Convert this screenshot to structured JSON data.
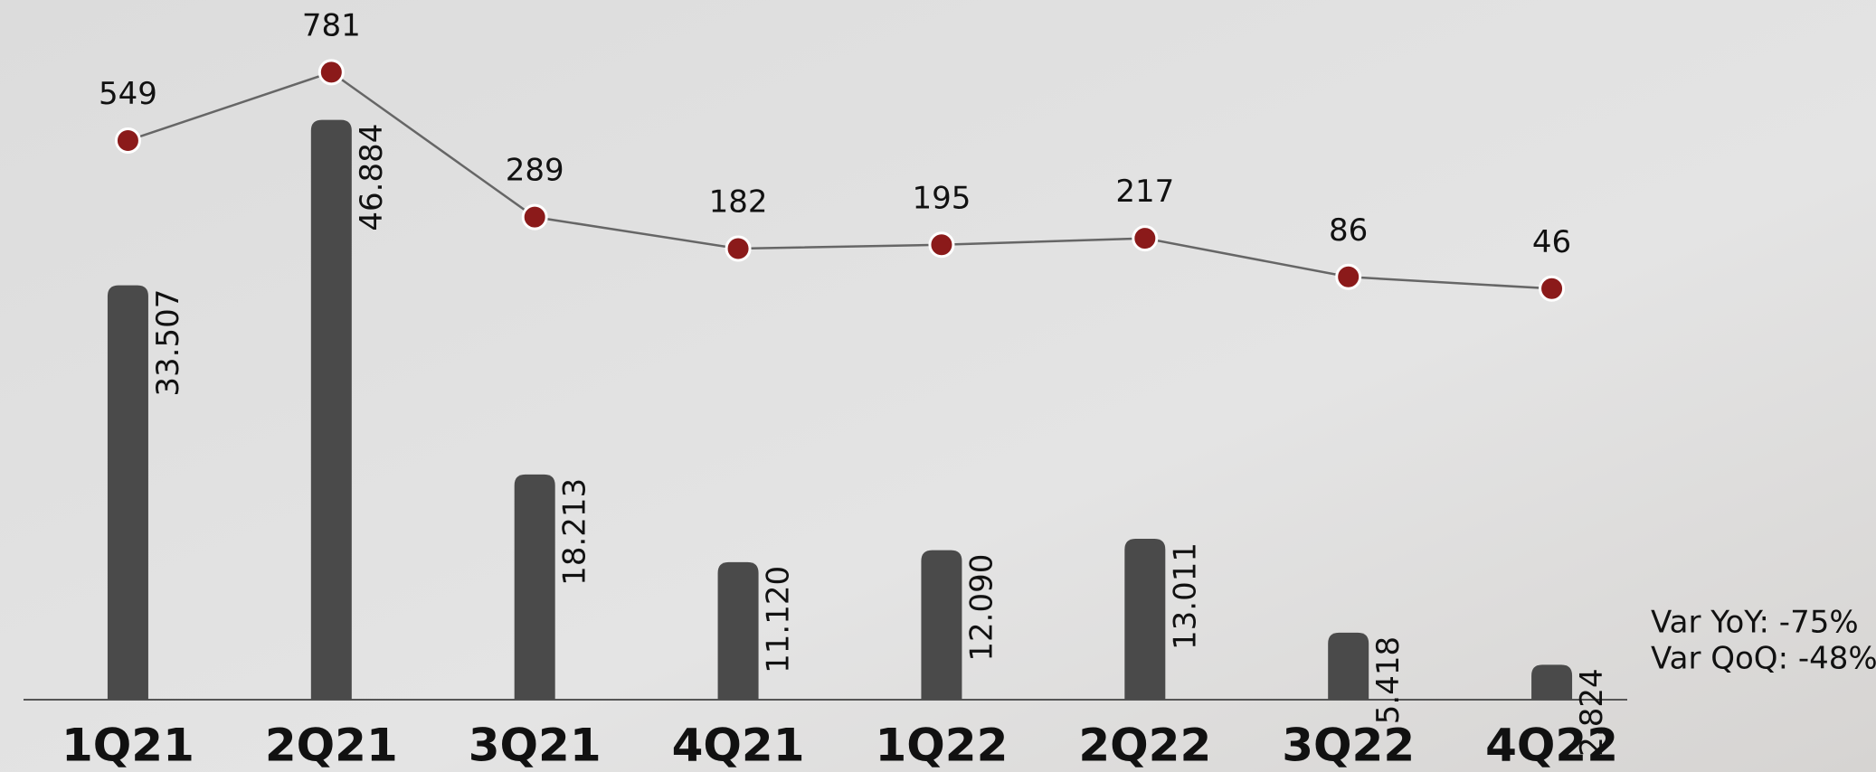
{
  "chart_data": {
    "type": "combo",
    "categories": [
      "1Q21",
      "2Q21",
      "3Q21",
      "4Q21",
      "1Q22",
      "2Q22",
      "3Q22",
      "4Q22"
    ],
    "series": [
      {
        "type": "bar",
        "color": "#4a4a4a",
        "values": [
          33.507,
          46.884,
          18.213,
          11.12,
          12.09,
          13.011,
          5.418,
          2.824
        ],
        "value_labels": [
          "33.507",
          "46.884",
          "18.213",
          "11.120",
          "12.090",
          "13.011",
          "5.418",
          "2.824"
        ]
      },
      {
        "type": "line",
        "axis": "y2",
        "color": "#8b1a1a",
        "line_color": "#666666",
        "values": [
          549,
          781,
          289,
          182,
          195,
          217,
          86,
          46
        ]
      }
    ],
    "ylim": [
      0,
      50
    ],
    "y2lim": [
      -1350,
      750
    ],
    "annotations": [
      "Var YoY: -75%",
      "Var QoQ: -48%"
    ]
  }
}
